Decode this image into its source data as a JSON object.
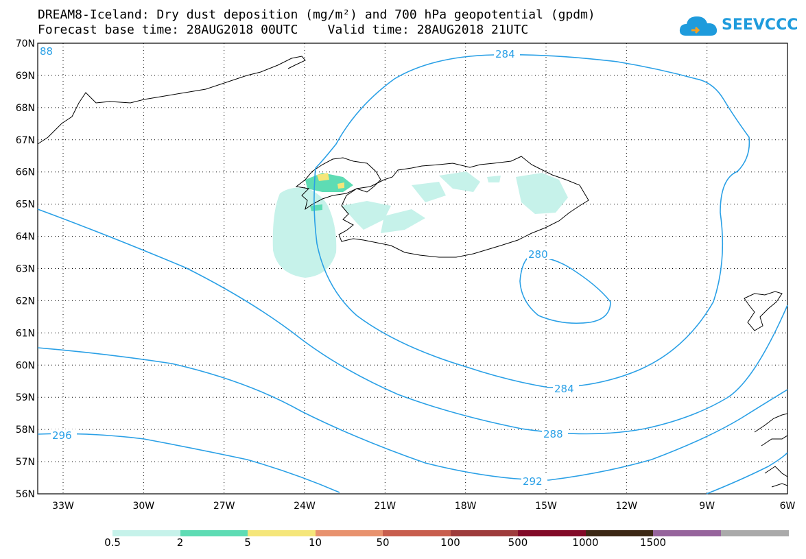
{
  "header": {
    "title_line1": "DREAM8-Iceland: Dry dust deposition (mg/m²) and 700 hPa geopotential (gpdm)",
    "title_line2": "Forecast base time: 28AUG2018 00UTC    Valid time: 28AUG2018 21UTC"
  },
  "logo": {
    "text": "SEEVCCC",
    "color": "#1e9bdc"
  },
  "map": {
    "lat_labels": [
      "70N",
      "69N",
      "68N",
      "67N",
      "66N",
      "65N",
      "64N",
      "63N",
      "62N",
      "61N",
      "60N",
      "59N",
      "58N",
      "57N",
      "56N"
    ],
    "lon_labels": [
      "33W",
      "30W",
      "27W",
      "24W",
      "21W",
      "18W",
      "15W",
      "12W",
      "9W",
      "6W"
    ],
    "contour_color": "#2aa0e6",
    "contour_labels": [
      "284",
      "280",
      "284",
      "288",
      "292",
      "296",
      "88"
    ]
  },
  "colorbar": {
    "colors": [
      "#c6f2ea",
      "#5edcb4",
      "#f5e67a",
      "#e8926e",
      "#c85e4e",
      "#9e3c3c",
      "#820a28",
      "#3c2814",
      "#96649c",
      "#aaaaaa"
    ],
    "labels": [
      "0.5",
      "2",
      "5",
      "10",
      "50",
      "100",
      "500",
      "1000",
      "1500"
    ]
  }
}
